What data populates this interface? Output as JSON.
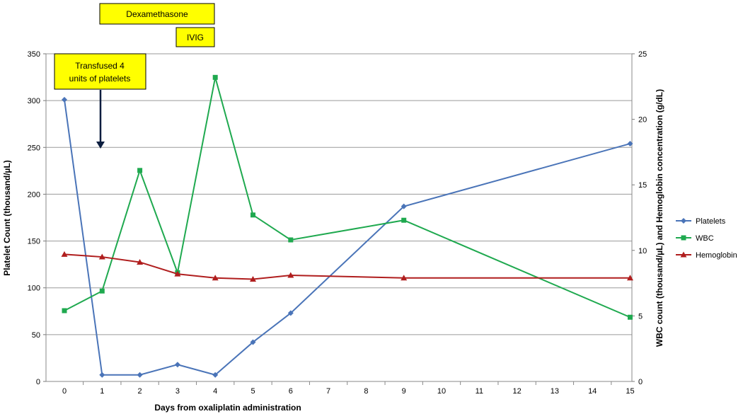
{
  "chart_data": {
    "type": "line",
    "xlabel": "Days from oxaliplatin administration",
    "ylabel_left": "Platelet Count (thousand/µL)",
    "ylabel_right": "WBC count (thousand/µL) and Hemoglobin concentration (g/dL)",
    "x_categories": [
      0,
      1,
      2,
      3,
      4,
      5,
      6,
      7,
      8,
      9,
      10,
      11,
      12,
      13,
      14,
      15
    ],
    "ylim_left": [
      0,
      350
    ],
    "ylim_right": [
      0,
      25
    ],
    "yticks_left": [
      0,
      50,
      100,
      150,
      200,
      250,
      300,
      350
    ],
    "yticks_right": [
      0,
      5,
      10,
      15,
      20,
      25
    ],
    "grid": true,
    "legend_position": "right",
    "series": [
      {
        "name": "Platelets",
        "axis": "left",
        "color": "#4a74b8",
        "marker": "diamond",
        "points": [
          [
            0,
            301
          ],
          [
            1,
            7
          ],
          [
            2,
            7
          ],
          [
            3,
            18
          ],
          [
            4,
            7
          ],
          [
            5,
            42
          ],
          [
            6,
            73
          ],
          [
            9,
            187
          ],
          [
            15,
            254
          ]
        ]
      },
      {
        "name": "WBC",
        "axis": "right",
        "color": "#1fa94f",
        "marker": "square",
        "points": [
          [
            0,
            5.4
          ],
          [
            1,
            6.9
          ],
          [
            2,
            16.1
          ],
          [
            3,
            8.3
          ],
          [
            4,
            23.2
          ],
          [
            5,
            12.7
          ],
          [
            6,
            10.8
          ],
          [
            9,
            12.3
          ],
          [
            15,
            4.9
          ]
        ]
      },
      {
        "name": "Hemoglobin",
        "axis": "right",
        "color": "#b01e1e",
        "marker": "triangle",
        "points": [
          [
            0,
            9.7
          ],
          [
            1,
            9.5
          ],
          [
            2,
            9.1
          ],
          [
            3,
            8.2
          ],
          [
            4,
            7.9
          ],
          [
            5,
            7.8
          ],
          [
            6,
            8.1
          ],
          [
            9,
            7.9
          ],
          [
            15,
            7.9
          ]
        ]
      }
    ],
    "annotations": [
      {
        "id": "dexamethasone",
        "text": "Dexamethasone",
        "color": "#ffff00"
      },
      {
        "id": "ivig",
        "text": "IVIG",
        "color": "#ffff00"
      },
      {
        "id": "transfused",
        "lines": [
          "Transfused 4",
          "units of platelets"
        ],
        "color": "#ffff00",
        "arrow_to_day": 1
      }
    ]
  }
}
